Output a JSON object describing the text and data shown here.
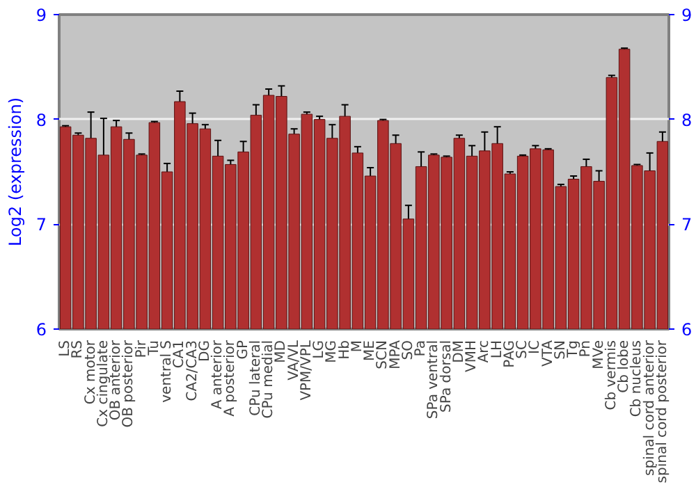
{
  "chart_data": {
    "type": "bar",
    "ylabel": "Log2 (expression)",
    "categories": [
      "LS",
      "RS",
      "Cx motor",
      "Cx cingulate",
      "OB anterior",
      "OB posterior",
      "Pir",
      "Tu",
      "ventral S",
      "CA1",
      "CA2/CA3",
      "DG",
      "A anterior",
      "A posterior",
      "GP",
      "CPu lateral",
      "CPu medial",
      "MD",
      "VA/VL",
      "VPM/VPL",
      "LG",
      "MG",
      "Hb",
      "M",
      "ME",
      "SCN",
      "MPA",
      "SO",
      "Pa",
      "SPa ventral",
      "SPa dorsal",
      "DM",
      "VMH",
      "Arc",
      "LH",
      "PAG",
      "SC",
      "IC",
      "VTA",
      "SN",
      "Tg",
      "Pn",
      "MVe",
      "Cb vermis",
      "Cb lobe",
      "Cb nucleus",
      "spinal cord anterior",
      "spinal cord posterior"
    ],
    "values": [
      7.93,
      7.85,
      7.82,
      7.66,
      7.93,
      7.81,
      7.66,
      7.97,
      7.5,
      8.17,
      7.96,
      7.91,
      7.65,
      7.57,
      7.69,
      8.04,
      8.23,
      8.22,
      7.86,
      8.05,
      8.0,
      7.82,
      8.03,
      7.68,
      7.46,
      7.99,
      7.77,
      7.05,
      7.55,
      7.66,
      7.64,
      7.82,
      7.65,
      7.7,
      7.77,
      7.48,
      7.65,
      7.72,
      7.71,
      7.36,
      7.43,
      7.55,
      7.41,
      8.4,
      8.67,
      7.56,
      7.51,
      7.79
    ],
    "errors": [
      0.01,
      0.02,
      0.25,
      0.35,
      0.06,
      0.06,
      0.01,
      0.01,
      0.08,
      0.1,
      0.1,
      0.04,
      0.15,
      0.04,
      0.1,
      0.1,
      0.06,
      0.1,
      0.05,
      0.02,
      0.03,
      0.13,
      0.11,
      0.06,
      0.08,
      0.01,
      0.08,
      0.13,
      0.14,
      0.01,
      0.01,
      0.03,
      0.1,
      0.18,
      0.16,
      0.02,
      0.01,
      0.03,
      0.01,
      0.02,
      0.03,
      0.07,
      0.1,
      0.02,
      0.01,
      0.01,
      0.17,
      0.09
    ],
    "color": "#b03030",
    "ylim": [
      6,
      9
    ],
    "yticks": [
      6,
      7,
      8,
      9
    ],
    "y2lim": [
      6,
      9
    ],
    "y2ticks": [
      6,
      7,
      8,
      9
    ],
    "grid": "y"
  }
}
